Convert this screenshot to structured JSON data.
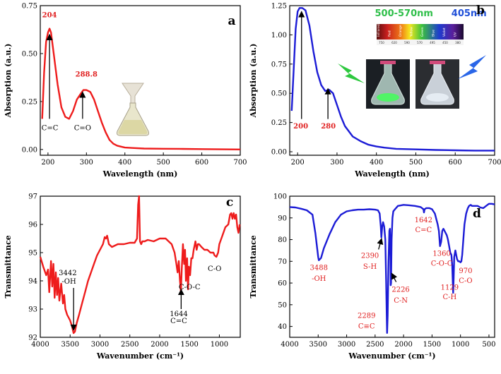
{
  "chart_data": [
    {
      "panel": "a",
      "type": "line",
      "xlabel": "Wavelength (nm)",
      "ylabel": "Absorption (a.u.)",
      "xlim": [
        180,
        700
      ],
      "ylim": [
        -0.03,
        0.75
      ],
      "xticks": [
        200,
        300,
        400,
        500,
        600,
        700
      ],
      "yticks": [
        0.0,
        0.25,
        0.5,
        0.75
      ],
      "ytick_labels": [
        "0.00",
        "0.25",
        "0.50",
        "0.75"
      ],
      "color": "#ee1c1c",
      "grid": false,
      "series": [
        {
          "x": [
            185,
            190,
            195,
            200,
            204,
            208,
            215,
            225,
            235,
            245,
            255,
            265,
            275,
            285,
            292,
            300,
            310,
            320,
            330,
            340,
            350,
            360,
            370,
            380,
            390,
            400,
            420,
            450,
            500,
            550,
            600,
            650,
            700
          ],
          "y": [
            0.16,
            0.4,
            0.56,
            0.61,
            0.63,
            0.61,
            0.5,
            0.34,
            0.22,
            0.17,
            0.16,
            0.2,
            0.26,
            0.29,
            0.31,
            0.31,
            0.3,
            0.26,
            0.2,
            0.14,
            0.09,
            0.05,
            0.03,
            0.02,
            0.015,
            0.01,
            0.008,
            0.005,
            0.004,
            0.003,
            0.002,
            0.001,
            0.0
          ]
        }
      ],
      "annotations": [
        {
          "text": "204",
          "x": 204,
          "y": 0.69,
          "style": "red-bold"
        },
        {
          "text": "288.8",
          "x": 300,
          "y": 0.38,
          "style": "red-bold"
        },
        {
          "text": "C=C",
          "x": 205,
          "y": 0.1,
          "style": "black"
        },
        {
          "text": "C=O",
          "x": 290,
          "y": 0.1,
          "style": "black"
        }
      ],
      "arrows": [
        {
          "x": 204,
          "y_from": 0.16,
          "y_to": 0.6
        },
        {
          "x": 290,
          "y_from": 0.16,
          "y_to": 0.3
        }
      ],
      "letter": "a"
    },
    {
      "panel": "b",
      "type": "line",
      "xlabel": "Wavelength (nm)",
      "ylabel": "Absorption (a.u.)",
      "xlim": [
        180,
        700
      ],
      "ylim": [
        -0.03,
        1.25
      ],
      "xticks": [
        200,
        300,
        400,
        500,
        600,
        700
      ],
      "yticks": [
        0.0,
        0.25,
        0.5,
        0.75,
        1.0,
        1.25
      ],
      "ytick_labels": [
        "0.00",
        "0.25",
        "0.50",
        "0.75",
        "1.00",
        "1.25"
      ],
      "color": "#1c1cd6",
      "grid": false,
      "series": [
        {
          "x": [
            185,
            190,
            195,
            200,
            205,
            212,
            220,
            230,
            240,
            250,
            260,
            270,
            280,
            290,
            300,
            310,
            320,
            340,
            360,
            380,
            400,
            420,
            450,
            500,
            550,
            600,
            650,
            700
          ],
          "y": [
            0.35,
            0.7,
            1.05,
            1.2,
            1.23,
            1.23,
            1.21,
            1.08,
            0.86,
            0.68,
            0.57,
            0.52,
            0.53,
            0.5,
            0.4,
            0.3,
            0.22,
            0.13,
            0.09,
            0.06,
            0.045,
            0.035,
            0.025,
            0.02,
            0.015,
            0.012,
            0.01,
            0.01
          ]
        }
      ],
      "annotations": [
        {
          "text": "200",
          "x": 208,
          "y": 0.2,
          "style": "red-bold"
        },
        {
          "text": "280",
          "x": 278,
          "y": 0.2,
          "style": "red-bold"
        },
        {
          "text": "500-570nm",
          "x": 470,
          "y": 1.16,
          "style": "green"
        },
        {
          "text": "405nm",
          "x": 635,
          "y": 1.16,
          "style": "blue"
        }
      ],
      "arrows": [
        {
          "x": 210,
          "y_from": 0.28,
          "y_to": 1.2
        },
        {
          "x": 277,
          "y_from": 0.28,
          "y_to": 0.54
        }
      ],
      "inset_spectrum": {
        "band_labels": [
          "Infrared",
          "Red",
          "Orange",
          "Yellow",
          "Green",
          "Blue",
          "Violet",
          "UV"
        ],
        "tick_labels": [
          "750",
          "620",
          "590",
          "570",
          "495",
          "450",
          "380"
        ]
      },
      "letter": "b"
    },
    {
      "panel": "c",
      "type": "line",
      "xlabel": "Wavenumber (cm⁻¹)",
      "ylabel": "Transmittance",
      "xlim": [
        4000,
        650
      ],
      "ylim": [
        92,
        97
      ],
      "xticks": [
        4000,
        3500,
        3000,
        2500,
        2000,
        1500,
        1000
      ],
      "yticks": [
        92,
        93,
        94,
        95,
        96,
        97
      ],
      "color": "#ee1c1c",
      "grid": false,
      "series": [
        {
          "x": [
            4000,
            3950,
            3900,
            3870,
            3850,
            3820,
            3800,
            3780,
            3760,
            3740,
            3720,
            3700,
            3680,
            3650,
            3620,
            3600,
            3580,
            3550,
            3500,
            3470,
            3442,
            3420,
            3390,
            3350,
            3300,
            3250,
            3200,
            3150,
            3100,
            3050,
            3000,
            2950,
            2920,
            2900,
            2880,
            2850,
            2800,
            2700,
            2600,
            2500,
            2420,
            2380,
            2360,
            2345,
            2330,
            2310,
            2290,
            2250,
            2200,
            2100,
            2000,
            1900,
            1850,
            1800,
            1750,
            1720,
            1700,
            1680,
            1660,
            1644,
            1630,
            1610,
            1590,
            1575,
            1560,
            1540,
            1525,
            1510,
            1490,
            1470,
            1450,
            1430,
            1400,
            1380,
            1360,
            1340,
            1300,
            1250,
            1200,
            1150,
            1100,
            1080,
            1050,
            1020,
            1000,
            950,
            900,
            850,
            820,
            800,
            780,
            760,
            740,
            720,
            700,
            680,
            660
          ],
          "y": [
            94.85,
            94.5,
            94.2,
            94.4,
            93.6,
            94.7,
            93.8,
            94.6,
            93.4,
            94.3,
            93.5,
            94.1,
            93.3,
            93.9,
            93.2,
            93.5,
            93.0,
            92.8,
            92.6,
            92.4,
            92.15,
            92.2,
            92.5,
            92.8,
            93.2,
            93.6,
            94.0,
            94.3,
            94.6,
            94.9,
            95.1,
            95.3,
            95.55,
            95.5,
            95.6,
            95.3,
            95.2,
            95.3,
            95.3,
            95.35,
            95.35,
            95.5,
            96.7,
            97.0,
            95.4,
            95.3,
            95.4,
            95.4,
            95.45,
            95.4,
            95.5,
            95.5,
            95.4,
            95.3,
            95.0,
            94.6,
            94.3,
            94.7,
            94.0,
            93.6,
            94.4,
            95.3,
            94.6,
            95.1,
            94.0,
            94.8,
            93.7,
            94.5,
            94.2,
            94.8,
            94.8,
            95.1,
            95.4,
            95.1,
            95.3,
            95.3,
            95.2,
            95.1,
            95.1,
            95.0,
            95.0,
            94.9,
            94.85,
            95.0,
            95.3,
            95.6,
            95.9,
            96.0,
            96.35,
            96.4,
            96.2,
            96.4,
            96.2,
            96.35,
            95.9,
            95.7,
            96.0
          ]
        }
      ],
      "annotations": [
        {
          "text": "3442",
          "x": 3540,
          "y": 94.2,
          "style": "black"
        },
        {
          "text": "-OH",
          "x": 3520,
          "y": 93.9,
          "style": "black"
        },
        {
          "text": "C-O-C",
          "x": 1500,
          "y": 93.7,
          "style": "black"
        },
        {
          "text": "1644",
          "x": 1680,
          "y": 92.75,
          "style": "black"
        },
        {
          "text": "C=C",
          "x": 1680,
          "y": 92.5,
          "style": "black"
        },
        {
          "text": "C-O",
          "x": 1080,
          "y": 94.35,
          "style": "black"
        }
      ],
      "arrows": [
        {
          "x": 3442,
          "y_from": 93.75,
          "y_to": 92.25
        },
        {
          "x": 1640,
          "y_from": 93.0,
          "y_to": 93.7
        }
      ],
      "letter": "c"
    },
    {
      "panel": "d",
      "type": "line",
      "xlabel": "Wavenumber (cm⁻¹)",
      "ylabel": "Transmittance",
      "xlim": [
        4000,
        400
      ],
      "ylim": [
        35,
        100
      ],
      "xticks": [
        4000,
        3500,
        3000,
        2500,
        2000,
        1500,
        1000,
        500
      ],
      "yticks": [
        40,
        50,
        60,
        70,
        80,
        90,
        100
      ],
      "color": "#1c1cd6",
      "grid": false,
      "series": [
        {
          "x": [
            4000,
            3900,
            3800,
            3700,
            3600,
            3550,
            3500,
            3488,
            3450,
            3400,
            3300,
            3200,
            3100,
            3000,
            2900,
            2800,
            2700,
            2600,
            2500,
            2450,
            2420,
            2400,
            2390,
            2375,
            2360,
            2340,
            2320,
            2305,
            2295,
            2289,
            2280,
            2265,
            2250,
            2240,
            2232,
            2226,
            2220,
            2210,
            2195,
            2180,
            2150,
            2100,
            2000,
            1900,
            1800,
            1700,
            1650,
            1642,
            1630,
            1600,
            1550,
            1500,
            1450,
            1400,
            1380,
            1360,
            1340,
            1320,
            1300,
            1280,
            1260,
            1240,
            1220,
            1200,
            1180,
            1160,
            1145,
            1135,
            1129,
            1120,
            1110,
            1090,
            1060,
            1040,
            1020,
            1000,
            985,
            970,
            950,
            930,
            900,
            870,
            850,
            820,
            800,
            750,
            700,
            650,
            600,
            550,
            500,
            450,
            400
          ],
          "y": [
            95,
            94.8,
            94.2,
            93.5,
            91.5,
            83,
            72,
            70.5,
            71.5,
            76,
            82.5,
            88,
            91.5,
            93.0,
            93.5,
            93.8,
            93.8,
            94.0,
            93.8,
            93.5,
            92.0,
            86.0,
            81.0,
            86.0,
            88.0,
            86.0,
            80.0,
            60.0,
            45.0,
            37.0,
            45.0,
            70.0,
            84.0,
            85.0,
            78.0,
            59.0,
            60.0,
            80.0,
            90.0,
            93.0,
            94.0,
            95.5,
            96.0,
            95.8,
            95.5,
            95.0,
            94.0,
            92.5,
            94.0,
            94.5,
            94.5,
            94.0,
            92.0,
            87.0,
            84.0,
            77.0,
            79.0,
            84.0,
            85.0,
            84.0,
            83.0,
            82.0,
            80.0,
            77.0,
            74.0,
            73.0,
            68.0,
            60.0,
            55.5,
            62.0,
            72.0,
            75.0,
            71.0,
            70.0,
            70.0,
            69.5,
            70.0,
            73.0,
            80.0,
            87.0,
            92.0,
            94.5,
            95.5,
            96.0,
            95.5,
            95.5,
            95.5,
            94.8,
            94.5,
            95.5,
            96.5,
            96.5,
            96.2
          ]
        }
      ],
      "annotations": [
        {
          "text": "3488",
          "x": 3488,
          "y": 66.0,
          "style": "red"
        },
        {
          "text": "-OH",
          "x": 3488,
          "y": 61.0,
          "style": "red"
        },
        {
          "text": "2390",
          "x": 2590,
          "y": 71.5,
          "style": "red"
        },
        {
          "text": "S-H",
          "x": 2590,
          "y": 66.5,
          "style": "red"
        },
        {
          "text": "2226",
          "x": 2050,
          "y": 56.0,
          "style": "red"
        },
        {
          "text": "C-N",
          "x": 2050,
          "y": 51.0,
          "style": "red"
        },
        {
          "text": "2289",
          "x": 2650,
          "y": 44.0,
          "style": "red"
        },
        {
          "text": "C≡C",
          "x": 2650,
          "y": 39.0,
          "style": "red"
        },
        {
          "text": "1642",
          "x": 1650,
          "y": 88.0,
          "style": "red"
        },
        {
          "text": "C=C",
          "x": 1650,
          "y": 83.5,
          "style": "red"
        },
        {
          "text": "1360",
          "x": 1330,
          "y": 72.5,
          "style": "red"
        },
        {
          "text": "C-O-C",
          "x": 1330,
          "y": 68.0,
          "style": "red"
        },
        {
          "text": "970",
          "x": 910,
          "y": 64.5,
          "style": "red"
        },
        {
          "text": "C-O",
          "x": 910,
          "y": 60.0,
          "style": "red"
        },
        {
          "text": "1129",
          "x": 1190,
          "y": 57.0,
          "style": "red"
        },
        {
          "text": "C-H",
          "x": 1190,
          "y": 52.5,
          "style": "red"
        }
      ],
      "arrows": [
        {
          "x": 2440,
          "y_from": 75.5,
          "y_to": 80.5,
          "x_to": 2385
        },
        {
          "x": 2130,
          "y_from": 60.5,
          "y_to": 64.5,
          "x_to": 2210
        }
      ],
      "letter": "d"
    }
  ]
}
